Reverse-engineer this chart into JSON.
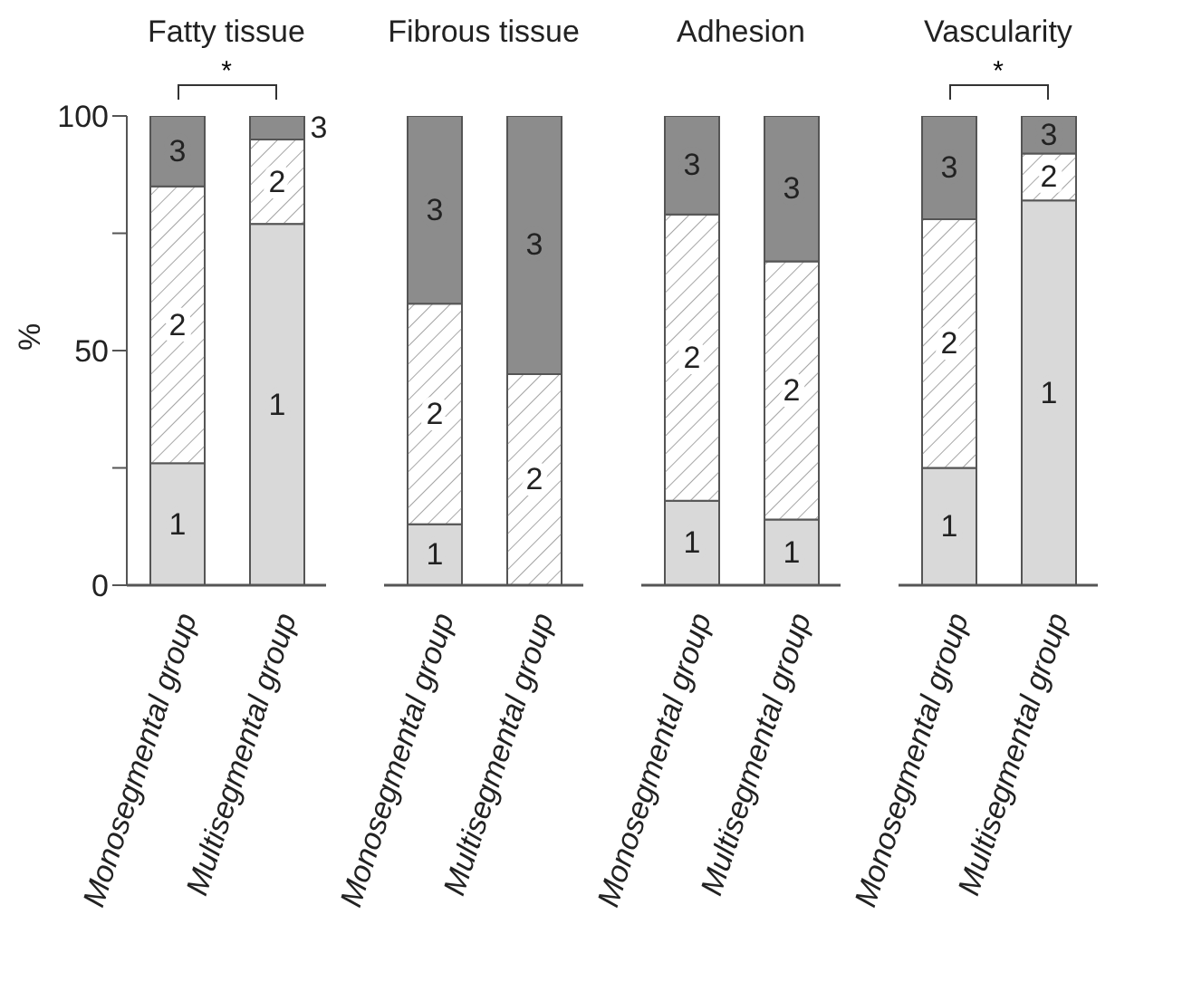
{
  "chart_data": [
    {
      "type": "bar",
      "stacked": true,
      "title": "Fatty tissue",
      "ylabel": "%",
      "categories": [
        "Monosegmental group",
        "Multisegmental group"
      ],
      "ylim": [
        0,
        100
      ],
      "yticks": [
        0,
        {
          "value": 25,
          "label": null
        },
        50,
        {
          "value": 75,
          "label": null
        },
        100
      ],
      "annotations": [
        "*"
      ],
      "series": [
        {
          "name": "1",
          "color": "#d9d9d9",
          "values": [
            26,
            77
          ]
        },
        {
          "name": "2",
          "color": "#ffffff",
          "values": [
            59,
            18
          ]
        },
        {
          "name": "3",
          "color": "#8c8c8c",
          "values": [
            15,
            5
          ]
        }
      ]
    },
    {
      "type": "bar",
      "stacked": true,
      "title": "Fibrous tissue",
      "categories": [
        "Monosegmental group",
        "Multisegmental group"
      ],
      "ylim": [
        0,
        100
      ],
      "tick_labels": "x",
      "series": [
        {
          "name": "1",
          "color": "#d9d9d9",
          "values": [
            13,
            0
          ]
        },
        {
          "name": "2",
          "color": "#ffffff",
          "values": [
            47,
            45
          ]
        },
        {
          "name": "3",
          "color": "#8c8c8c",
          "values": [
            40,
            55
          ]
        }
      ]
    },
    {
      "type": "bar",
      "stacked": true,
      "title": "Adhesion",
      "categories": [
        "Monosegmental group",
        "Multisegmental group"
      ],
      "ylim": [
        0,
        100
      ],
      "tick_labels": "x",
      "series": [
        {
          "name": "1",
          "color": "#d9d9d9",
          "values": [
            18,
            14
          ]
        },
        {
          "name": "2",
          "color": "#ffffff",
          "values": [
            61,
            55
          ]
        },
        {
          "name": "3",
          "color": "#8c8c8c",
          "values": [
            21,
            31
          ]
        }
      ]
    },
    {
      "type": "bar",
      "stacked": true,
      "title": "Vascularity",
      "categories": [
        "Monosegmental group",
        "Multisegmental group"
      ],
      "ylim": [
        0,
        100
      ],
      "tick_labels": "x",
      "annotations": [
        "*"
      ],
      "series": [
        {
          "name": "1",
          "color": "#d9d9d9",
          "values": [
            25,
            82
          ]
        },
        {
          "name": "2",
          "color": "#ffffff",
          "values": [
            53,
            10
          ]
        },
        {
          "name": "3",
          "color": "#8c8c8c",
          "values": [
            22,
            8
          ]
        }
      ]
    }
  ]
}
